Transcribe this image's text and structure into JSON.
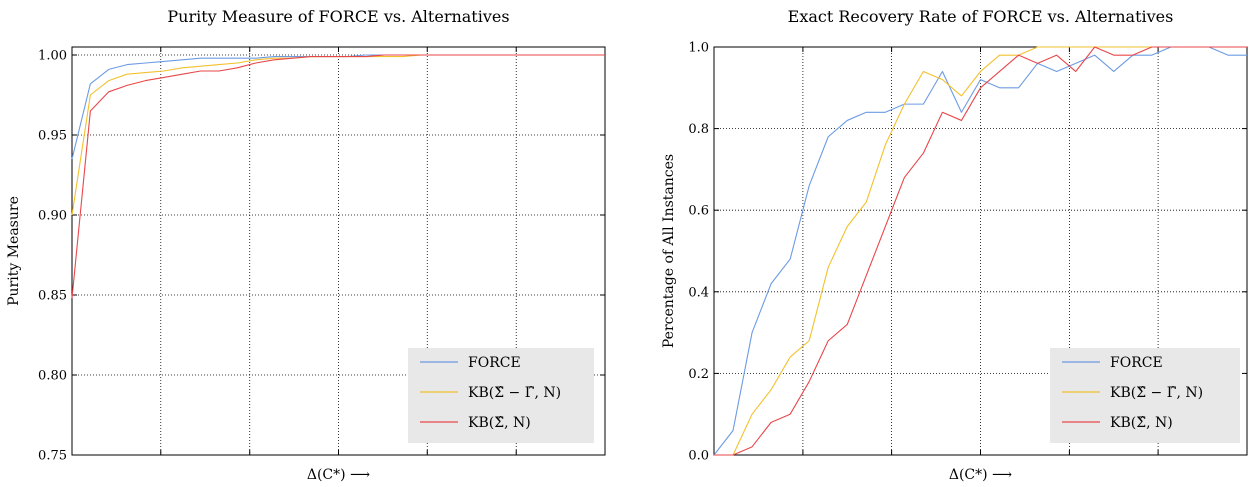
{
  "chart_data": [
    {
      "type": "line",
      "title": "Purity Measure of FORCE vs. Alternatives",
      "xlabel": "Δ(C*) ⟶",
      "ylabel": "Purity Measure",
      "ylim": [
        0.75,
        1.005
      ],
      "yticks": [
        0.75,
        0.8,
        0.85,
        0.9,
        0.95,
        1.0
      ],
      "ytick_labels": [
        "0.75",
        "0.80",
        "0.85",
        "0.90",
        "0.95",
        "1.00"
      ],
      "xlim": [
        0,
        29
      ],
      "xgrid": [
        4.83,
        9.67,
        14.5,
        19.33,
        24.17
      ],
      "grid": true,
      "legend_position": "lower-right",
      "x": [
        0,
        1,
        2,
        3,
        4,
        5,
        6,
        7,
        8,
        9,
        10,
        11,
        12,
        13,
        14,
        15,
        16,
        17,
        18,
        19,
        20,
        21,
        22,
        23,
        24,
        25,
        26,
        27,
        28,
        29
      ],
      "series": [
        {
          "name": "FORCE",
          "color": "#6d9be3",
          "values": [
            0.935,
            0.982,
            0.991,
            0.994,
            0.995,
            0.996,
            0.997,
            0.998,
            0.998,
            0.998,
            0.998,
            0.999,
            0.999,
            0.999,
            0.999,
            0.999,
            1.0,
            1.0,
            1.0,
            1.0,
            1.0,
            1.0,
            1.0,
            1.0,
            1.0,
            1.0,
            1.0,
            1.0,
            1.0,
            1.0
          ]
        },
        {
          "name": "KB(Σ̂ − Γ̂, N)",
          "color": "#f2c12e",
          "values": [
            0.9,
            0.975,
            0.984,
            0.988,
            0.989,
            0.99,
            0.992,
            0.993,
            0.994,
            0.995,
            0.997,
            0.998,
            0.998,
            0.999,
            0.999,
            0.999,
            0.999,
            0.999,
            0.999,
            1.0,
            1.0,
            1.0,
            1.0,
            1.0,
            1.0,
            1.0,
            1.0,
            1.0,
            1.0,
            1.0
          ]
        },
        {
          "name": "KB(Σ̂, N)",
          "color": "#e8474a",
          "values": [
            0.848,
            0.965,
            0.977,
            0.981,
            0.984,
            0.986,
            0.988,
            0.99,
            0.99,
            0.992,
            0.995,
            0.997,
            0.998,
            0.999,
            0.999,
            0.999,
            0.999,
            1.0,
            1.0,
            1.0,
            1.0,
            1.0,
            1.0,
            1.0,
            1.0,
            1.0,
            1.0,
            1.0,
            1.0,
            1.0
          ]
        }
      ]
    },
    {
      "type": "line",
      "title": "Exact Recovery Rate of FORCE vs. Alternatives",
      "xlabel": "Δ(C*) ⟶",
      "ylabel": "Percentage of All Instances",
      "ylim": [
        0.0,
        1.0
      ],
      "yticks": [
        0.0,
        0.2,
        0.4,
        0.6,
        0.8,
        1.0
      ],
      "ytick_labels": [
        "0.0",
        "0.2",
        "0.4",
        "0.6",
        "0.8",
        "1.0"
      ],
      "xlim": [
        0,
        28
      ],
      "xgrid": [
        4.67,
        9.33,
        14.0,
        18.67,
        23.33
      ],
      "grid": true,
      "legend_position": "lower-right",
      "x": [
        0,
        1,
        2,
        3,
        4,
        5,
        6,
        7,
        8,
        9,
        10,
        11,
        12,
        13,
        14,
        15,
        16,
        17,
        18,
        19,
        20,
        21,
        22,
        23,
        24,
        25,
        26,
        27,
        28
      ],
      "series": [
        {
          "name": "FORCE",
          "color": "#6d9be3",
          "values": [
            0.0,
            0.06,
            0.3,
            0.42,
            0.48,
            0.66,
            0.78,
            0.82,
            0.84,
            0.84,
            0.86,
            0.86,
            0.94,
            0.84,
            0.92,
            0.9,
            0.9,
            0.96,
            0.94,
            0.96,
            0.98,
            0.94,
            0.98,
            0.98,
            1.0,
            1.0,
            1.0,
            0.98,
            0.98
          ]
        },
        {
          "name": "KB(Σ̂ − Γ̂, N)",
          "color": "#f2c12e",
          "values": [
            0.0,
            0.0,
            0.1,
            0.16,
            0.24,
            0.28,
            0.46,
            0.56,
            0.62,
            0.76,
            0.86,
            0.94,
            0.92,
            0.88,
            0.94,
            0.98,
            0.98,
            1.0,
            1.0,
            1.0,
            1.0,
            1.0,
            1.0,
            1.0,
            1.0,
            1.0,
            1.0,
            1.0,
            1.0
          ]
        },
        {
          "name": "KB(Σ̂, N)",
          "color": "#e8474a",
          "values": [
            0.0,
            0.0,
            0.02,
            0.08,
            0.1,
            0.18,
            0.28,
            0.32,
            0.44,
            0.56,
            0.68,
            0.74,
            0.84,
            0.82,
            0.9,
            0.94,
            0.98,
            0.96,
            0.98,
            0.94,
            1.0,
            0.98,
            0.98,
            1.0,
            1.0,
            1.0,
            1.0,
            1.0,
            1.0
          ]
        }
      ]
    }
  ]
}
